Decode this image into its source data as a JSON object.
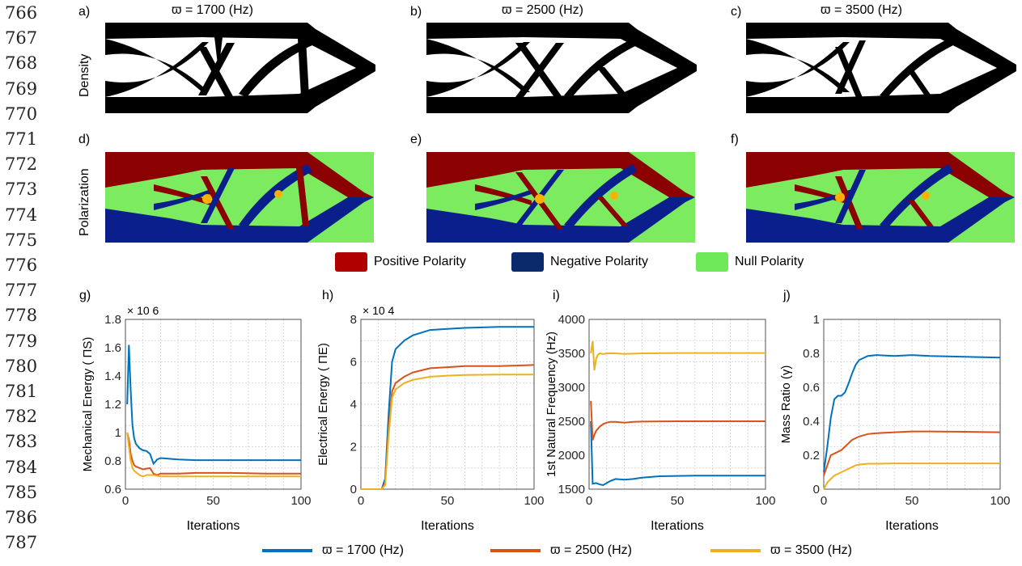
{
  "line_numbers": [
    "766",
    "767",
    "768",
    "769",
    "770",
    "771",
    "772",
    "773",
    "774",
    "775",
    "776",
    "777",
    "778",
    "779",
    "780",
    "781",
    "782",
    "783",
    "784",
    "785",
    "786",
    "787"
  ],
  "top_panels": {
    "labels": [
      "a)",
      "b)",
      "c)",
      "d)",
      "e)",
      "f)"
    ],
    "titles": [
      "ϖ  = 1700 (Hz)",
      "ϖ  = 2500 (Hz)",
      "ϖ  = 3500 (Hz)"
    ],
    "row_labels": {
      "density": "Density",
      "polarization": "Polarization"
    }
  },
  "polarity_legend": [
    {
      "label": "Positive Polarity",
      "color": "#B00000"
    },
    {
      "label": "Negative Polarity",
      "color": "#0A2A6B"
    },
    {
      "label": "Null Polarity",
      "color": "#6FE85A"
    }
  ],
  "series_legend": [
    {
      "label": "ϖ  = 1700 (Hz)",
      "color": "#0072BD"
    },
    {
      "label": "ϖ  = 2500 (Hz)",
      "color": "#D95319"
    },
    {
      "label": "ϖ  = 3500 (Hz)",
      "color": "#EDB120"
    }
  ],
  "chart_data": [
    {
      "type": "line",
      "panel": "g)",
      "xlabel": "Iterations",
      "ylabel": "Mechanical Energy ( ΠS)",
      "exponent": "× 10  6",
      "xlim": [
        0,
        100
      ],
      "ylim": [
        0.6,
        1.8
      ],
      "yticks": [
        "0.6",
        "0.8",
        "1",
        "1.2",
        "1.4",
        "1.6",
        "1.8"
      ],
      "xticks": [
        "0",
        "50",
        "100"
      ],
      "grid": true,
      "series": [
        {
          "color": "#0072BD",
          "x": [
            1,
            2,
            3,
            4,
            5,
            6,
            8,
            10,
            12,
            14,
            16,
            18,
            20,
            25,
            30,
            40,
            60,
            80,
            100
          ],
          "y": [
            1.2,
            1.62,
            1.3,
            1.05,
            0.96,
            0.92,
            0.89,
            0.875,
            0.87,
            0.85,
            0.78,
            0.81,
            0.82,
            0.815,
            0.81,
            0.805,
            0.805,
            0.805,
            0.805
          ]
        },
        {
          "color": "#D95319",
          "x": [
            1,
            2,
            3,
            4,
            5,
            6,
            8,
            10,
            12,
            14,
            16,
            18,
            20,
            25,
            30,
            40,
            60,
            80,
            100
          ],
          "y": [
            1.0,
            0.95,
            0.85,
            0.8,
            0.77,
            0.76,
            0.75,
            0.74,
            0.745,
            0.75,
            0.71,
            0.7,
            0.71,
            0.71,
            0.71,
            0.715,
            0.715,
            0.71,
            0.71
          ]
        },
        {
          "color": "#EDB120",
          "x": [
            1,
            2,
            3,
            4,
            5,
            6,
            8,
            10,
            12,
            14,
            16,
            18,
            20,
            25,
            30,
            40,
            60,
            80,
            100
          ],
          "y": [
            1.0,
            0.9,
            0.8,
            0.75,
            0.73,
            0.72,
            0.7,
            0.69,
            0.7,
            0.7,
            0.7,
            0.695,
            0.69,
            0.69,
            0.69,
            0.69,
            0.69,
            0.69,
            0.69
          ]
        }
      ]
    },
    {
      "type": "line",
      "panel": "h)",
      "xlabel": "Iterations",
      "ylabel": "Electrical Energy ( ΠE)",
      "exponent": "× 10  4",
      "xlim": [
        0,
        100
      ],
      "ylim": [
        0,
        8
      ],
      "yticks": [
        "0",
        "2",
        "4",
        "6",
        "8"
      ],
      "xticks": [
        "0",
        "50",
        "100"
      ],
      "grid": true,
      "series": [
        {
          "color": "#0072BD",
          "x": [
            0,
            12,
            14,
            16,
            18,
            20,
            25,
            30,
            40,
            50,
            60,
            80,
            100
          ],
          "y": [
            0,
            0,
            0.5,
            3.5,
            6.0,
            6.6,
            7.0,
            7.25,
            7.5,
            7.55,
            7.6,
            7.65,
            7.65
          ]
        },
        {
          "color": "#D95319",
          "x": [
            0,
            12,
            14,
            16,
            18,
            20,
            25,
            30,
            40,
            50,
            60,
            80,
            100
          ],
          "y": [
            0,
            0,
            0.3,
            2.8,
            4.6,
            5.0,
            5.3,
            5.5,
            5.7,
            5.75,
            5.8,
            5.8,
            5.85
          ]
        },
        {
          "color": "#EDB120",
          "x": [
            0,
            12,
            14,
            16,
            18,
            20,
            25,
            30,
            40,
            50,
            60,
            80,
            100
          ],
          "y": [
            0,
            0,
            0.2,
            2.5,
            4.3,
            4.7,
            5.0,
            5.15,
            5.3,
            5.35,
            5.38,
            5.4,
            5.4
          ]
        }
      ]
    },
    {
      "type": "line",
      "panel": "i)",
      "xlabel": "Iterations",
      "ylabel": "1st Natural Frequency (Hz)",
      "exponent": "",
      "xlim": [
        0,
        100
      ],
      "ylim": [
        1500,
        4000
      ],
      "yticks": [
        "1500",
        "2000",
        "2500",
        "3000",
        "3500",
        "4000"
      ],
      "xticks": [
        "0",
        "50",
        "100"
      ],
      "grid": true,
      "series": [
        {
          "color": "#0072BD",
          "x": [
            1,
            2,
            4,
            6,
            8,
            10,
            12,
            15,
            20,
            25,
            30,
            40,
            50,
            60,
            80,
            100
          ],
          "y": [
            2500,
            1580,
            1590,
            1570,
            1560,
            1590,
            1620,
            1650,
            1640,
            1650,
            1670,
            1690,
            1695,
            1700,
            1700,
            1700
          ]
        },
        {
          "color": "#D95319",
          "x": [
            1,
            2,
            3,
            4,
            6,
            8,
            10,
            12,
            15,
            20,
            25,
            30,
            50,
            100
          ],
          "y": [
            2800,
            2220,
            2300,
            2360,
            2420,
            2460,
            2480,
            2490,
            2490,
            2480,
            2490,
            2495,
            2500,
            2500
          ]
        },
        {
          "color": "#EDB120",
          "x": [
            1,
            2,
            3,
            4,
            5,
            6,
            8,
            10,
            15,
            20,
            30,
            50,
            100
          ],
          "y": [
            3500,
            3680,
            3250,
            3420,
            3480,
            3500,
            3490,
            3500,
            3500,
            3490,
            3500,
            3505,
            3505
          ]
        }
      ]
    },
    {
      "type": "line",
      "panel": "j)",
      "xlabel": "Iterations",
      "ylabel": "Mass Ratio (γ)",
      "exponent": "",
      "xlim": [
        0,
        100
      ],
      "ylim": [
        0,
        1
      ],
      "yticks": [
        "0",
        "0.2",
        "0.4",
        "0.6",
        "0.8",
        "1"
      ],
      "xticks": [
        "0",
        "50",
        "100"
      ],
      "grid": true,
      "series": [
        {
          "color": "#0072BD",
          "x": [
            0,
            2,
            4,
            6,
            8,
            10,
            12,
            14,
            16,
            18,
            20,
            25,
            30,
            40,
            50,
            60,
            80,
            100
          ],
          "y": [
            0.1,
            0.25,
            0.42,
            0.53,
            0.55,
            0.55,
            0.57,
            0.62,
            0.68,
            0.73,
            0.76,
            0.785,
            0.79,
            0.785,
            0.79,
            0.785,
            0.78,
            0.775
          ]
        },
        {
          "color": "#D95319",
          "x": [
            0,
            2,
            4,
            6,
            8,
            10,
            12,
            14,
            16,
            18,
            20,
            25,
            30,
            40,
            50,
            60,
            80,
            100
          ],
          "y": [
            0.08,
            0.14,
            0.2,
            0.21,
            0.22,
            0.23,
            0.25,
            0.27,
            0.29,
            0.3,
            0.31,
            0.325,
            0.33,
            0.335,
            0.34,
            0.34,
            0.338,
            0.335
          ]
        },
        {
          "color": "#EDB120",
          "x": [
            0,
            2,
            4,
            6,
            8,
            10,
            12,
            14,
            16,
            18,
            20,
            25,
            30,
            40,
            50,
            60,
            80,
            100
          ],
          "y": [
            0.0,
            0.04,
            0.06,
            0.08,
            0.09,
            0.1,
            0.11,
            0.12,
            0.13,
            0.14,
            0.145,
            0.15,
            0.15,
            0.152,
            0.152,
            0.152,
            0.152,
            0.152
          ]
        }
      ]
    }
  ]
}
